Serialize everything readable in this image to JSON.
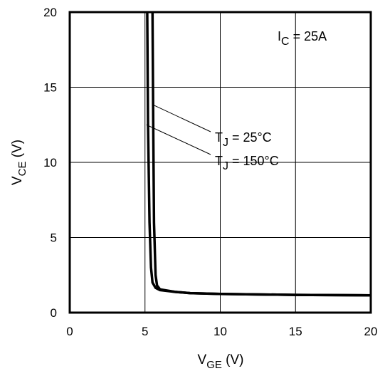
{
  "chart_data": {
    "type": "line",
    "xlabel": {
      "main": "V",
      "sub": "GE",
      "unit": " (V)"
    },
    "ylabel": {
      "main": "V",
      "sub": "CE",
      "unit": " (V)"
    },
    "xlim": [
      0,
      20
    ],
    "ylim": [
      0,
      20
    ],
    "xticks": [
      "0",
      "5",
      "10",
      "15",
      "20"
    ],
    "yticks": [
      "0",
      "5",
      "10",
      "15",
      "20"
    ],
    "grid": true,
    "condition": {
      "main": "I",
      "sub": "C",
      "rest": " = 25A"
    },
    "series": [
      {
        "name": "TJ = 25°C",
        "label": {
          "main": "T",
          "sub": "J",
          "rest": " = 25°C"
        },
        "color": "#000000",
        "x": [
          5.5,
          5.55,
          5.6,
          5.7,
          5.8,
          6.0,
          7.0,
          8.0,
          10.0,
          15.0,
          20.0
        ],
        "y": [
          20,
          12.0,
          6.0,
          2.5,
          1.8,
          1.55,
          1.38,
          1.3,
          1.24,
          1.18,
          1.15
        ]
      },
      {
        "name": "TJ = 150°C",
        "label": {
          "main": "T",
          "sub": "J",
          "rest": " = 150°C"
        },
        "color": "#000000",
        "x": [
          5.15,
          5.2,
          5.3,
          5.4,
          5.5,
          5.7,
          6.0,
          7.0,
          8.0,
          10.0,
          15.0,
          20.0
        ],
        "y": [
          20,
          12.5,
          6.0,
          3.0,
          2.0,
          1.65,
          1.5,
          1.38,
          1.3,
          1.24,
          1.18,
          1.15
        ]
      }
    ]
  }
}
